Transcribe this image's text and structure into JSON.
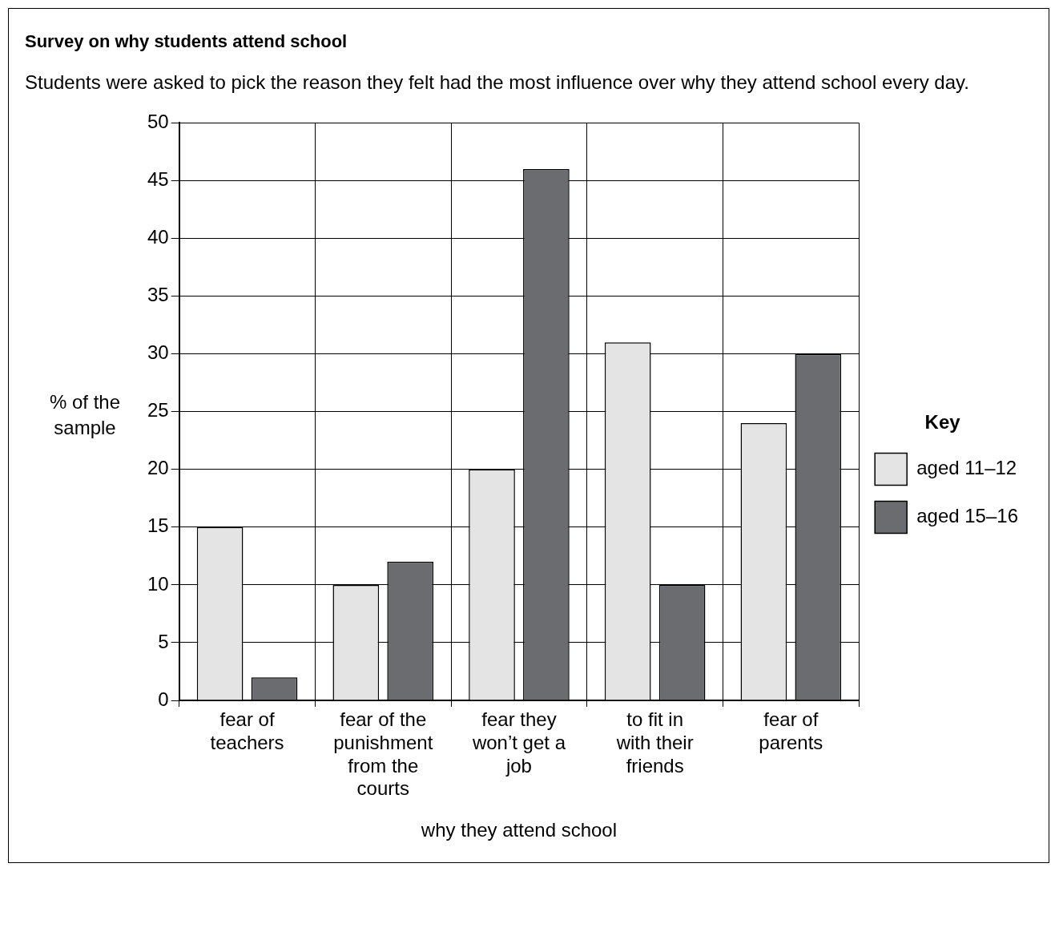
{
  "chart_data": {
    "type": "bar",
    "title": "Survey on why students attend school",
    "subtitle": "Students were asked to pick the reason they felt had the most influence over why they attend school every day.",
    "xlabel": "why they attend school",
    "ylabel": "% of the sample",
    "legend_title": "Key",
    "categories": [
      "fear of teachers",
      "fear of the punishment from the courts",
      "fear they won’t get a job",
      "to fit in with their friends",
      "fear of parents"
    ],
    "series": [
      {
        "name": "aged 11–12",
        "color": "#e4e4e4",
        "values": [
          15,
          10,
          20,
          31,
          24
        ]
      },
      {
        "name": "aged 15–16",
        "color": "#6b6c70",
        "values": [
          2,
          12,
          46,
          10,
          30
        ]
      }
    ],
    "ylim": [
      0,
      50
    ],
    "yticks": [
      0,
      5,
      10,
      15,
      20,
      25,
      30,
      35,
      40,
      45,
      50
    ],
    "grid": true,
    "legend": "right"
  }
}
